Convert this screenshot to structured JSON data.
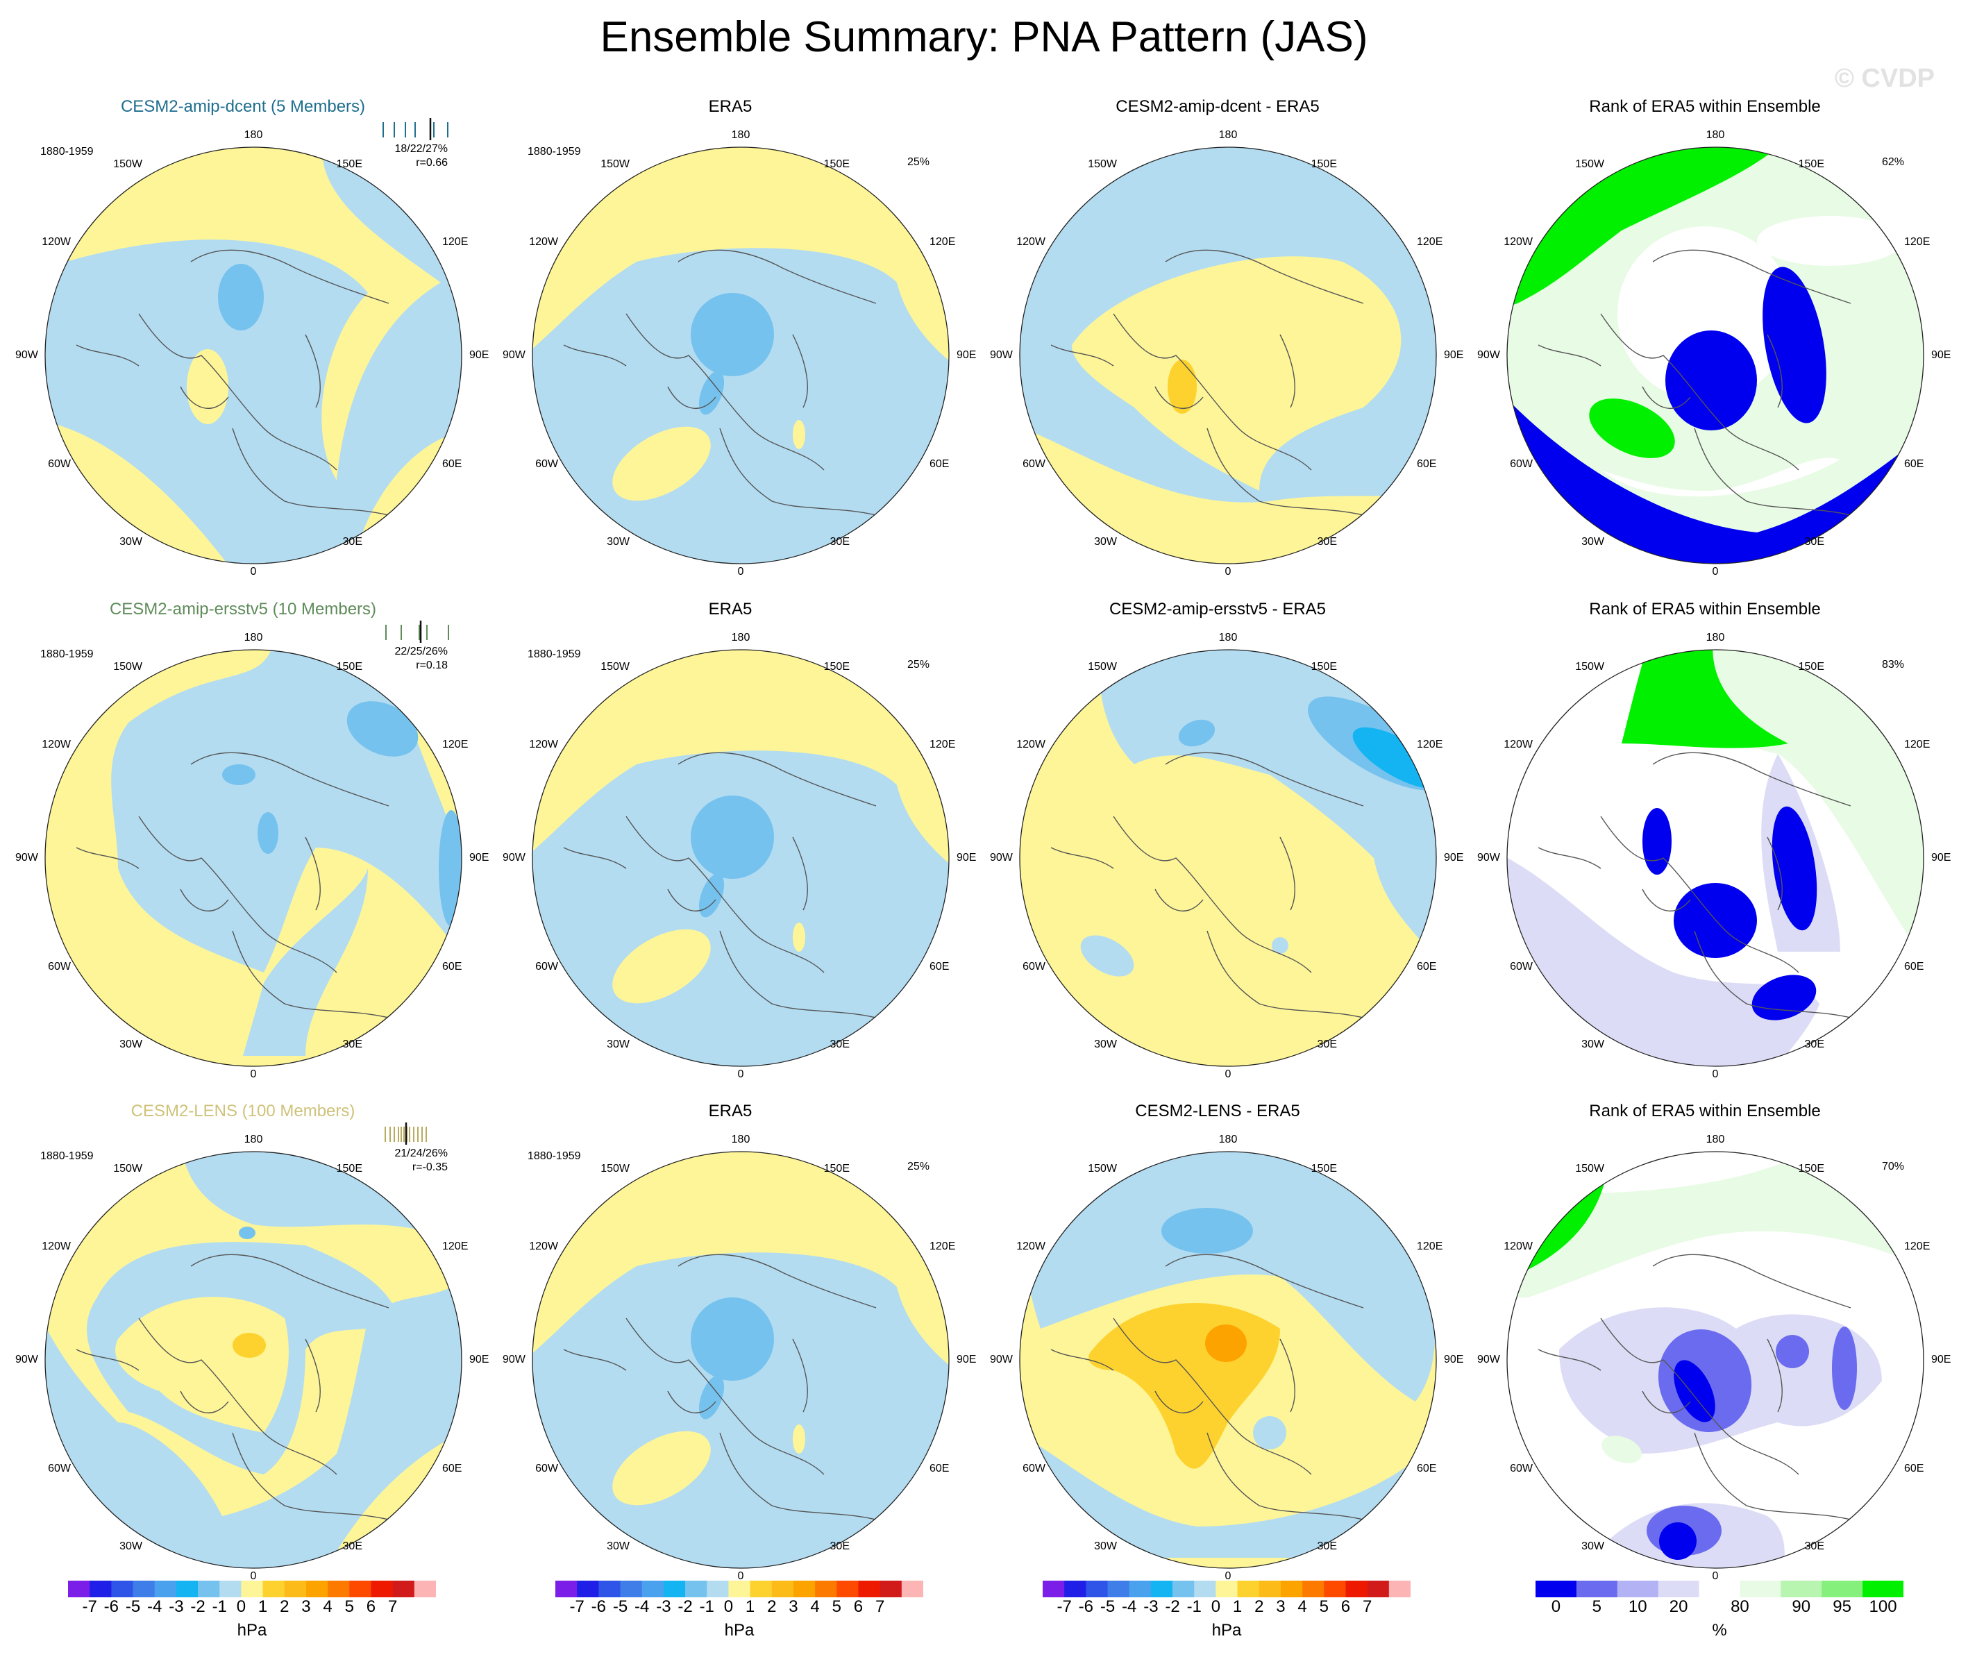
{
  "title": "Ensemble Summary: PNA Pattern (JAS)",
  "watermark": "© CVDP",
  "colors": {
    "neg1": "#b3dcf1",
    "neg2": "#76c2ee",
    "neg3": "#13b4f1",
    "pos1": "#fdf598",
    "pos2": "#fdd22e",
    "pos3": "#fda300",
    "rank_low": "#0000ee",
    "rank_mid_low": "#6b6bf0",
    "rank_pale_low": "#dcdcf6",
    "rank_high": "#00f000",
    "rank_pale_high": "#e8fbe4"
  },
  "lon_labels": {
    "top": "180",
    "bottom": "0",
    "left": "90W",
    "right": "90E",
    "ul1": "150W",
    "ur1": "150E",
    "ul2": "120W",
    "ur2": "120E",
    "ll1": "60W",
    "lr1": "60E",
    "ll2": "30W",
    "lr2": "30E"
  },
  "rows": [
    {
      "model": {
        "title": "CESM2-amip-dcent (5 Members)",
        "title_color": "#1f6e8e",
        "period": "1880-1959",
        "stat": "18/22/27%",
        "corr": "r=0.66",
        "hist_color": "#1f6e8e",
        "pattern": "A"
      },
      "obs": {
        "title": "ERA5",
        "period": "1880-1959",
        "pct": "25%",
        "pattern": "OBS"
      },
      "diff": {
        "title": "CESM2-amip-dcent - ERA5",
        "pattern": "D1"
      },
      "rank": {
        "title": "Rank of ERA5 within Ensemble",
        "pct": "62%",
        "pattern": "R1"
      }
    },
    {
      "model": {
        "title": "CESM2-amip-ersstv5 (10 Members)",
        "title_color": "#5f8c5a",
        "period": "1880-1959",
        "stat": "22/25/26%",
        "corr": "r=0.18",
        "hist_color": "#5f8c5a",
        "pattern": "B"
      },
      "obs": {
        "title": "ERA5",
        "period": "1880-1959",
        "pct": "25%",
        "pattern": "OBS"
      },
      "diff": {
        "title": "CESM2-amip-ersstv5 - ERA5",
        "pattern": "D2"
      },
      "rank": {
        "title": "Rank of ERA5 within Ensemble",
        "pct": "83%",
        "pattern": "R2"
      }
    },
    {
      "model": {
        "title": "CESM2-LENS (100 Members)",
        "title_color": "#cfc27a",
        "period": "1880-1959",
        "stat": "21/24/26%",
        "corr": "r=-0.35",
        "hist_color": "#b8ab5e",
        "pattern": "C"
      },
      "obs": {
        "title": "ERA5",
        "period": "1880-1959",
        "pct": "25%",
        "pattern": "OBS"
      },
      "diff": {
        "title": "CESM2-LENS - ERA5",
        "pattern": "D3"
      },
      "rank": {
        "title": "Rank of ERA5 within Ensemble",
        "pct": "70%",
        "pattern": "R3"
      }
    }
  ],
  "colorbars": {
    "hpa": {
      "unit": "hPa",
      "labels": [
        "-7",
        "-6",
        "-5",
        "-4",
        "-3",
        "-2",
        "-1",
        "0",
        "1",
        "2",
        "3",
        "4",
        "5",
        "6",
        "7"
      ],
      "colors": [
        "#7b1ee8",
        "#1f1fe8",
        "#2e54e8",
        "#3f7de8",
        "#4aa2ee",
        "#13b4f1",
        "#76c2ee",
        "#b3dcf1",
        "#fdf598",
        "#fdd22e",
        "#fdbb1a",
        "#fda300",
        "#fd7a00",
        "#fd4a00",
        "#ee1a00",
        "#d11a1a",
        "#fdb4b4"
      ]
    },
    "pct": {
      "unit": "%",
      "labels": [
        "0",
        "5",
        "10",
        "20",
        "80",
        "90",
        "95",
        "100"
      ],
      "colors": [
        "#0000ee",
        "#6b6bf0",
        "#b2b2f5",
        "#dcdcf6",
        "#ffffff",
        "#e8fbe4",
        "#b8f5b0",
        "#86f07c",
        "#00f000"
      ]
    }
  }
}
